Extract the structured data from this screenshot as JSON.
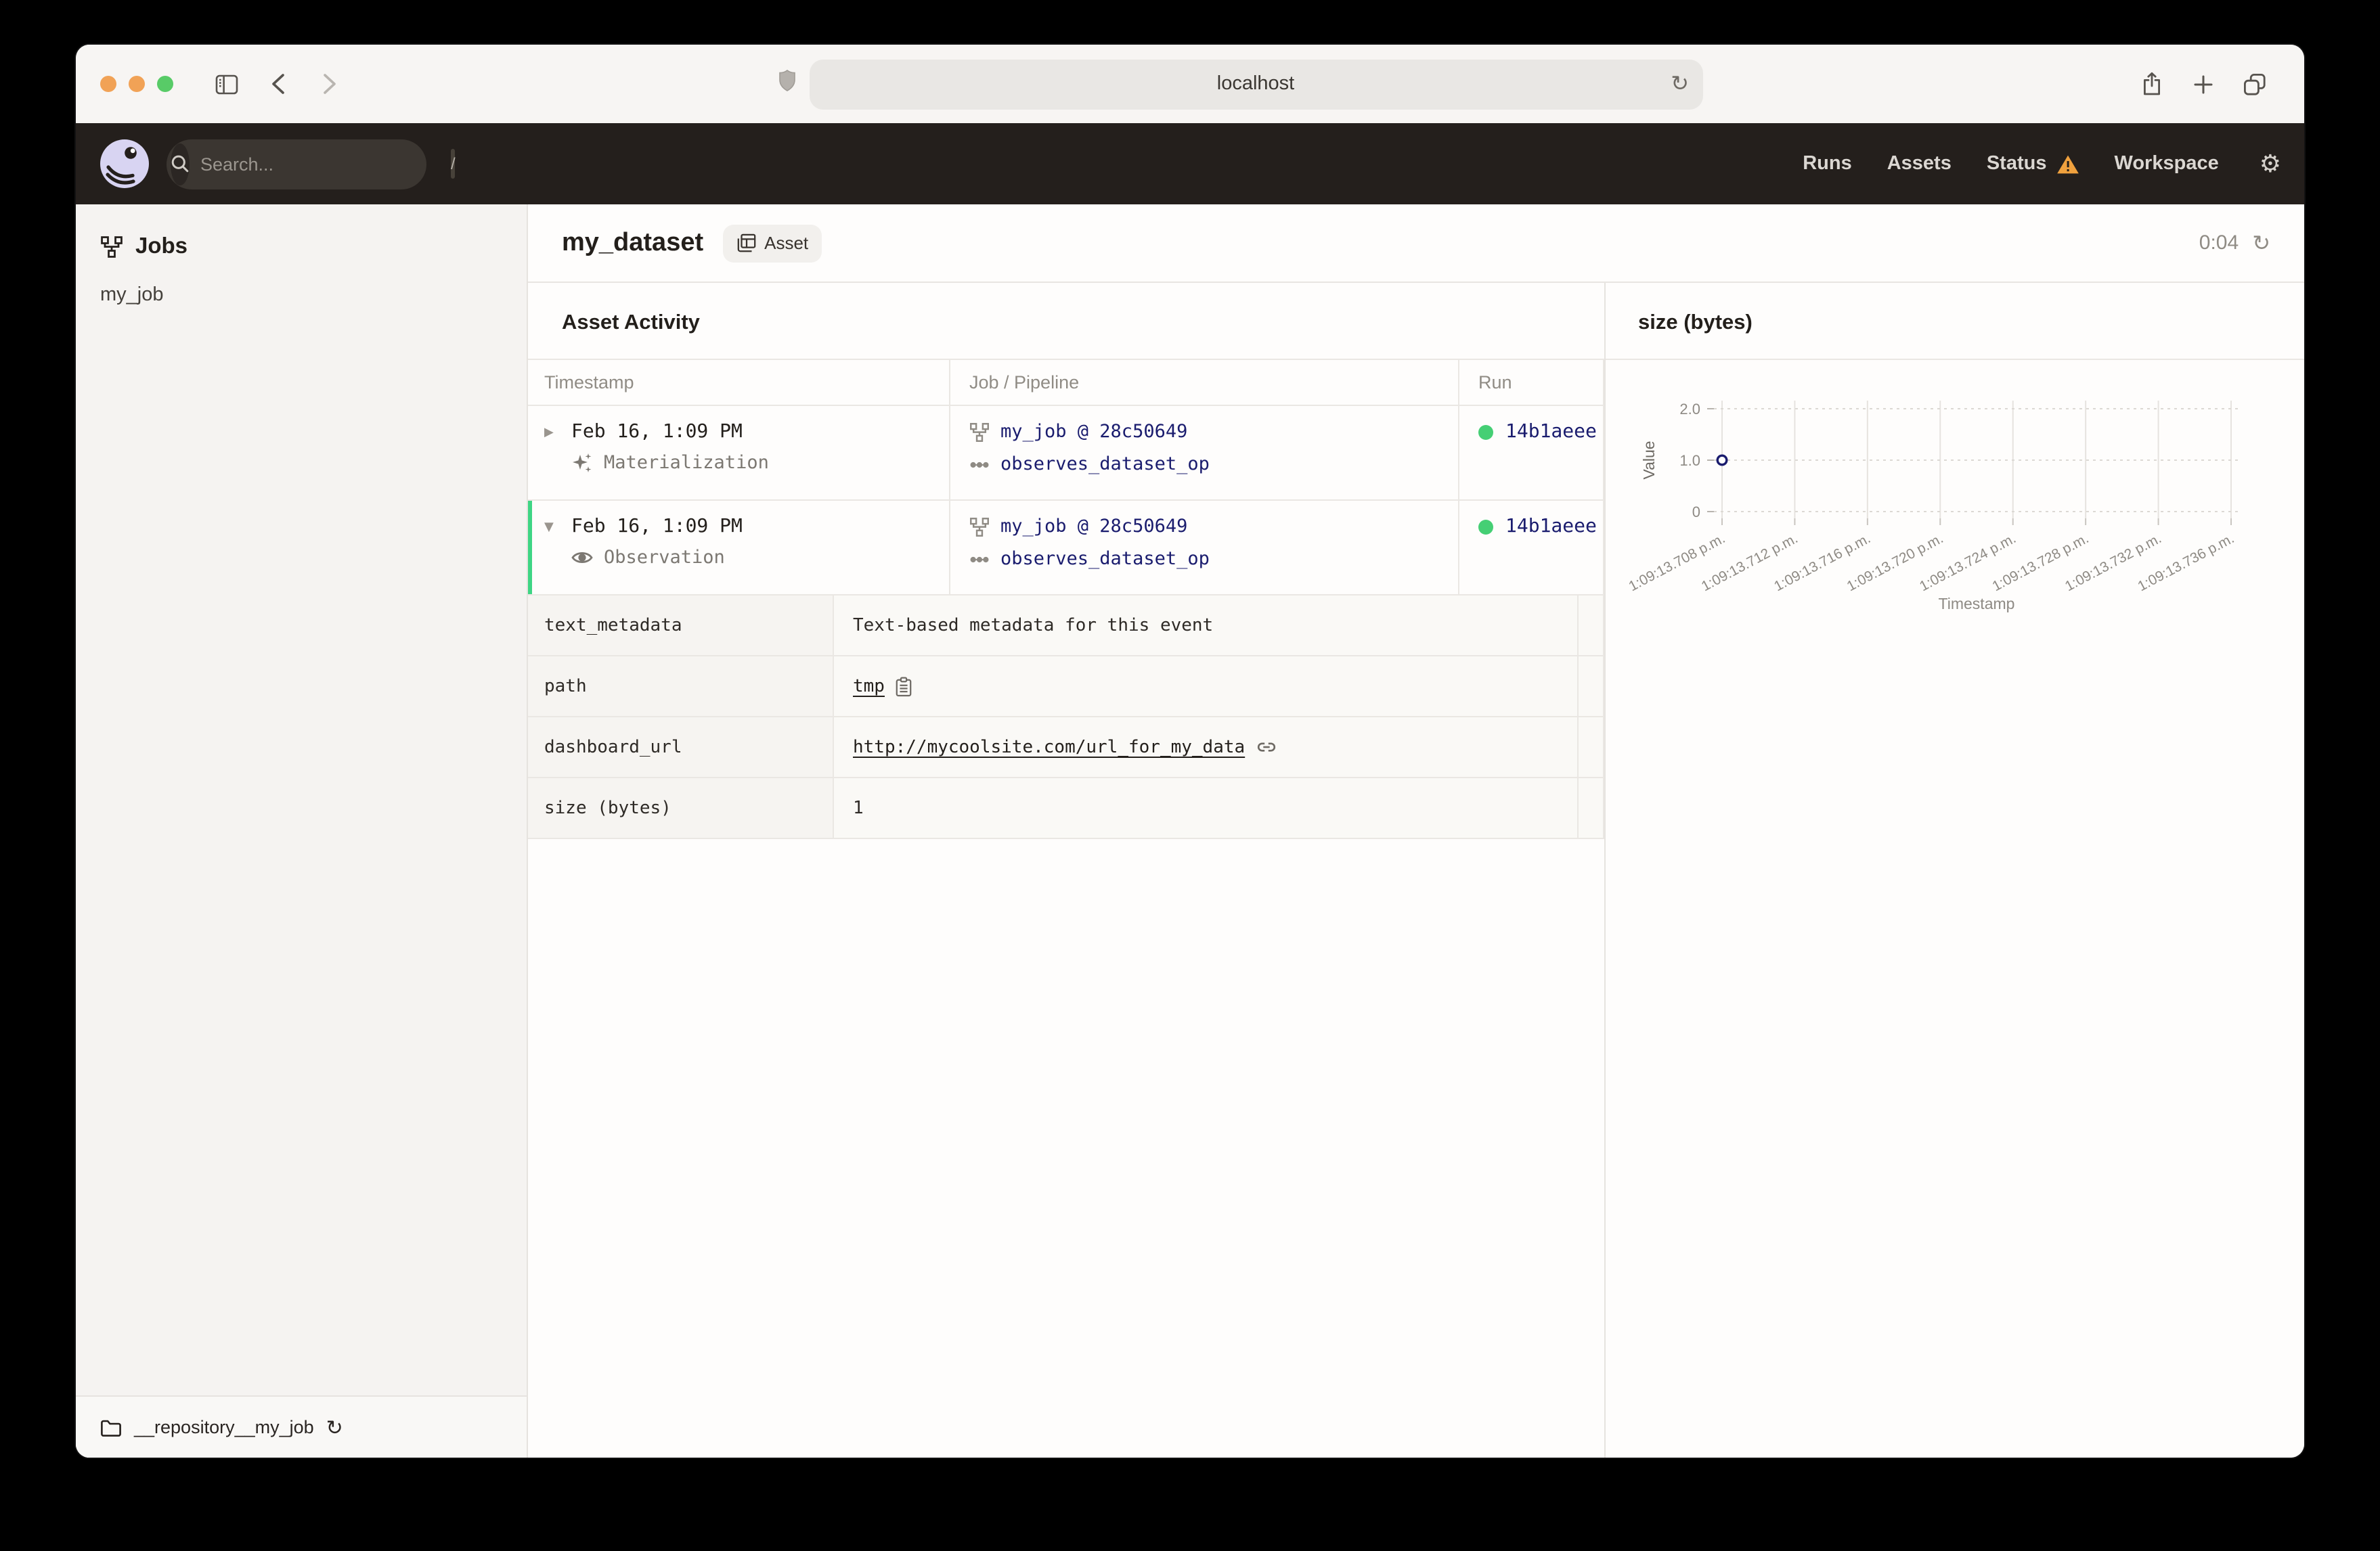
{
  "browser": {
    "url": "localhost",
    "traffic_lights": [
      "#f1a256",
      "#f1a256",
      "#58cb67"
    ]
  },
  "header": {
    "search_placeholder": "Search...",
    "search_shortcut": "/",
    "nav": [
      "Runs",
      "Assets",
      "Status",
      "Workspace"
    ]
  },
  "sidebar": {
    "section_title": "Jobs",
    "items": [
      {
        "label": "my_job"
      }
    ],
    "repository": "__repository__my_job"
  },
  "page": {
    "title": "my_dataset",
    "tag": "Asset",
    "timer": "0:04"
  },
  "activity": {
    "title": "Asset Activity",
    "columns": {
      "timestamp": "Timestamp",
      "job": "Job / Pipeline",
      "run": "Run"
    },
    "rows": [
      {
        "timestamp": "Feb 16, 1:09 PM",
        "event_type": "Materialization",
        "job": "my_job @ 28c50649",
        "op": "observes_dataset_op",
        "run_id": "14b1aeee",
        "expanded": false
      },
      {
        "timestamp": "Feb 16, 1:09 PM",
        "event_type": "Observation",
        "job": "my_job @ 28c50649",
        "op": "observes_dataset_op",
        "run_id": "14b1aeee",
        "expanded": true
      }
    ],
    "metadata": [
      {
        "key": "text_metadata",
        "value": "Text-based metadata for this event",
        "type": "text"
      },
      {
        "key": "path",
        "value": "tmp",
        "type": "path"
      },
      {
        "key": "dashboard_url",
        "value": "http://mycoolsite.com/url_for_my_data",
        "type": "url"
      },
      {
        "key": "size (bytes)",
        "value": "1",
        "type": "text"
      }
    ]
  },
  "chart_data": {
    "type": "scatter",
    "title": "size (bytes)",
    "xlabel": "Timestamp",
    "ylabel": "Value",
    "x_ticks": [
      "1:09:13.708 p.m.",
      "1:09:13.712 p.m.",
      "1:09:13.716 p.m.",
      "1:09:13.720 p.m.",
      "1:09:13.724 p.m.",
      "1:09:13.728 p.m.",
      "1:09:13.732 p.m.",
      "1:09:13.736 p.m."
    ],
    "y_ticks": [
      {
        "value": 2,
        "label": "2.0"
      },
      {
        "value": 1,
        "label": "1.0"
      },
      {
        "value": 0,
        "label": "0"
      }
    ],
    "ylim": [
      0,
      2
    ],
    "grid": true,
    "legend": false,
    "points": [
      {
        "x": "1:09:13.708 p.m.",
        "y": 1
      }
    ],
    "point_color": "#1a1c6e"
  },
  "colors": {
    "header_bg": "#241f1c",
    "expanded_row_accent": "#3ed584",
    "run_success_dot": "#45cf74",
    "warning": "#f0a13e",
    "link_navy": "#1a1c6e"
  }
}
